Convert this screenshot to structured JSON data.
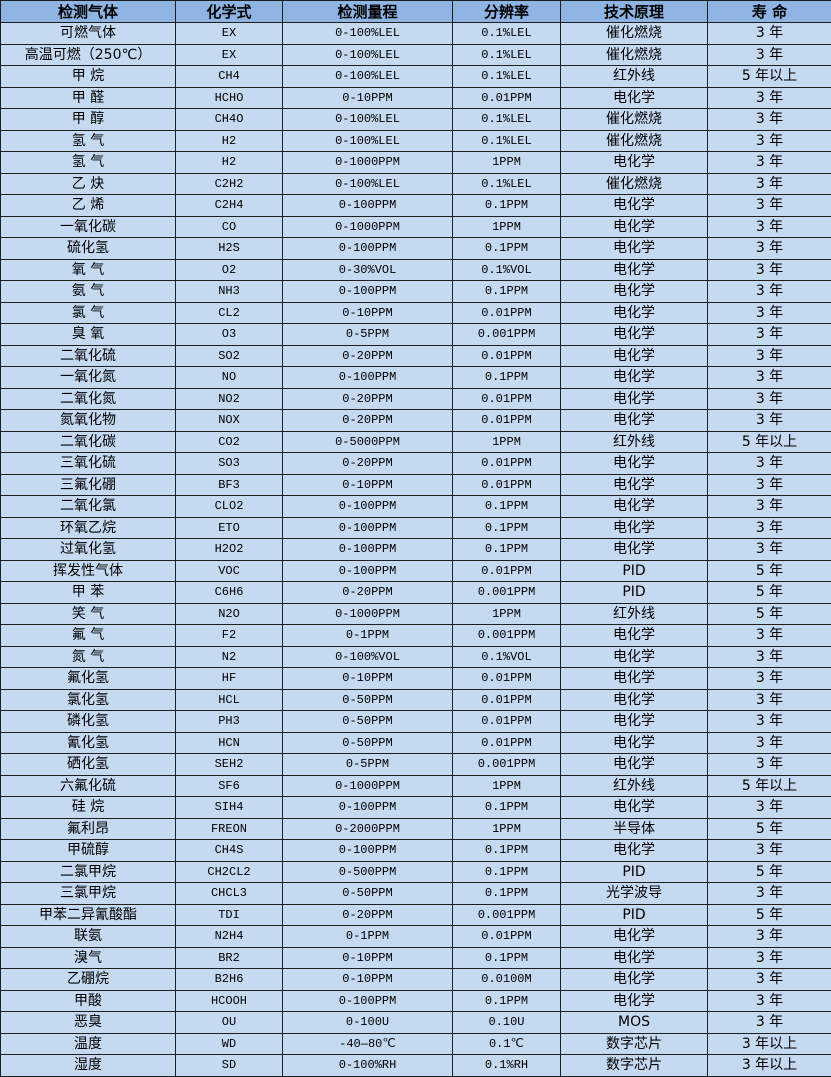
{
  "colors": {
    "header_bg": "#8db4e2",
    "row_bg": "#c5d9f1",
    "border": "#1f1f1f"
  },
  "table": {
    "headers": [
      "检测气体",
      "化学式",
      "检测量程",
      "分辨率",
      "技术原理",
      "寿 命"
    ],
    "rows": [
      [
        "可燃气体",
        "EX",
        "0-100%LEL",
        "0.1%LEL",
        "催化燃烧",
        "3 年"
      ],
      [
        "高温可燃（250℃）",
        "EX",
        "0-100%LEL",
        "0.1%LEL",
        "催化燃烧",
        "3 年"
      ],
      [
        "甲 烷",
        "CH4",
        "0-100%LEL",
        "0.1%LEL",
        "红外线",
        "5 年以上"
      ],
      [
        "甲 醛",
        "HCHO",
        "0-10PPM",
        "0.01PPM",
        "电化学",
        "3 年"
      ],
      [
        "甲 醇",
        "CH4O",
        "0-100%LEL",
        "0.1%LEL",
        "催化燃烧",
        "3 年"
      ],
      [
        "氢 气",
        "H2",
        "0-100%LEL",
        "0.1%LEL",
        "催化燃烧",
        "3 年"
      ],
      [
        "氢 气",
        "H2",
        "0-1000PPM",
        "1PPM",
        "电化学",
        "3 年"
      ],
      [
        "乙 炔",
        "C2H2",
        "0-100%LEL",
        "0.1%LEL",
        "催化燃烧",
        "3 年"
      ],
      [
        "乙 烯",
        "C2H4",
        "0-100PPM",
        "0.1PPM",
        "电化学",
        "3 年"
      ],
      [
        "一氧化碳",
        "CO",
        "0-1000PPM",
        "1PPM",
        "电化学",
        "3 年"
      ],
      [
        "硫化氢",
        "H2S",
        "0-100PPM",
        "0.1PPM",
        "电化学",
        "3 年"
      ],
      [
        "氧 气",
        "O2",
        "0-30%VOL",
        "0.1%VOL",
        "电化学",
        "3 年"
      ],
      [
        "氨 气",
        "NH3",
        "0-100PPM",
        "0.1PPM",
        "电化学",
        "3 年"
      ],
      [
        "氯 气",
        "CL2",
        "0-10PPM",
        "0.01PPM",
        "电化学",
        "3 年"
      ],
      [
        "臭 氧",
        "O3",
        "0-5PPM",
        "0.001PPM",
        "电化学",
        "3 年"
      ],
      [
        "二氧化硫",
        "SO2",
        "0-20PPM",
        "0.01PPM",
        "电化学",
        "3 年"
      ],
      [
        "一氧化氮",
        "NO",
        "0-100PPM",
        "0.1PPM",
        "电化学",
        "3 年"
      ],
      [
        "二氧化氮",
        "NO2",
        "0-20PPM",
        "0.01PPM",
        "电化学",
        "3 年"
      ],
      [
        "氮氧化物",
        "NOX",
        "0-20PPM",
        "0.01PPM",
        "电化学",
        "3 年"
      ],
      [
        "二氧化碳",
        "CO2",
        "0-5000PPM",
        "1PPM",
        "红外线",
        "5 年以上"
      ],
      [
        "三氧化硫",
        "SO3",
        "0-20PPM",
        "0.01PPM",
        "电化学",
        "3 年"
      ],
      [
        "三氟化硼",
        "BF3",
        "0-10PPM",
        "0.01PPM",
        "电化学",
        "3 年"
      ],
      [
        "二氧化氯",
        "CLO2",
        "0-100PPM",
        "0.1PPM",
        "电化学",
        "3 年"
      ],
      [
        "环氧乙烷",
        "ETO",
        "0-100PPM",
        "0.1PPM",
        "电化学",
        "3 年"
      ],
      [
        "过氧化氢",
        "H2O2",
        "0-100PPM",
        "0.1PPM",
        "电化学",
        "3 年"
      ],
      [
        "挥发性气体",
        "VOC",
        "0-100PPM",
        "0.01PPM",
        "PID",
        "5 年"
      ],
      [
        "甲 苯",
        "C6H6",
        "0-20PPM",
        "0.001PPM",
        "PID",
        "5 年"
      ],
      [
        "笑 气",
        "N2O",
        "0-1000PPM",
        "1PPM",
        "红外线",
        "5 年"
      ],
      [
        "氟 气",
        "F2",
        "0-1PPM",
        "0.001PPM",
        "电化学",
        "3 年"
      ],
      [
        "氮 气",
        "N2",
        "0-100%VOL",
        "0.1%VOL",
        "电化学",
        "3 年"
      ],
      [
        "氟化氢",
        "HF",
        "0-10PPM",
        "0.01PPM",
        "电化学",
        "3 年"
      ],
      [
        "氯化氢",
        "HCL",
        "0-50PPM",
        "0.01PPM",
        "电化学",
        "3 年"
      ],
      [
        "磷化氢",
        "PH3",
        "0-50PPM",
        "0.01PPM",
        "电化学",
        "3 年"
      ],
      [
        "氰化氢",
        "HCN",
        "0-50PPM",
        "0.01PPM",
        "电化学",
        "3 年"
      ],
      [
        "硒化氢",
        "SEH2",
        "0-5PPM",
        "0.001PPM",
        "电化学",
        "3 年"
      ],
      [
        "六氟化硫",
        "SF6",
        "0-1000PPM",
        "1PPM",
        "红外线",
        "5 年以上"
      ],
      [
        "硅 烷",
        "SIH4",
        "0-100PPM",
        "0.1PPM",
        "电化学",
        "3 年"
      ],
      [
        "氟利昂",
        "FREON",
        "0-2000PPM",
        "1PPM",
        "半导体",
        "5 年"
      ],
      [
        "甲硫醇",
        "CH4S",
        "0-100PPM",
        "0.1PPM",
        "电化学",
        "3 年"
      ],
      [
        "二氯甲烷",
        "CH2CL2",
        "0-500PPM",
        "0.1PPM",
        "PID",
        "5 年"
      ],
      [
        "三氯甲烷",
        "CHCL3",
        "0-50PPM",
        "0.1PPM",
        "光学波导",
        "3 年"
      ],
      [
        "甲苯二异氰酸酯",
        "TDI",
        "0-20PPM",
        "0.001PPM",
        "PID",
        "5 年"
      ],
      [
        "联氨",
        "N2H4",
        "0-1PPM",
        "0.01PPM",
        "电化学",
        "3 年"
      ],
      [
        "溴气",
        "BR2",
        "0-10PPM",
        "0.1PPM",
        "电化学",
        "3 年"
      ],
      [
        "乙硼烷",
        "B2H6",
        "0-10PPM",
        "0.0100M",
        "电化学",
        "3 年"
      ],
      [
        "甲酸",
        "HCOOH",
        "0-100PPM",
        "0.1PPM",
        "电化学",
        "3 年"
      ],
      [
        "恶臭",
        "OU",
        "0-100U",
        "0.10U",
        "MOS",
        "3 年"
      ],
      [
        "温度",
        "WD",
        "-40—80℃",
        "0.1℃",
        "数字芯片",
        "3 年以上"
      ],
      [
        "湿度",
        "SD",
        "0-100%RH",
        "0.1%RH",
        "数字芯片",
        "3 年以上"
      ]
    ]
  }
}
